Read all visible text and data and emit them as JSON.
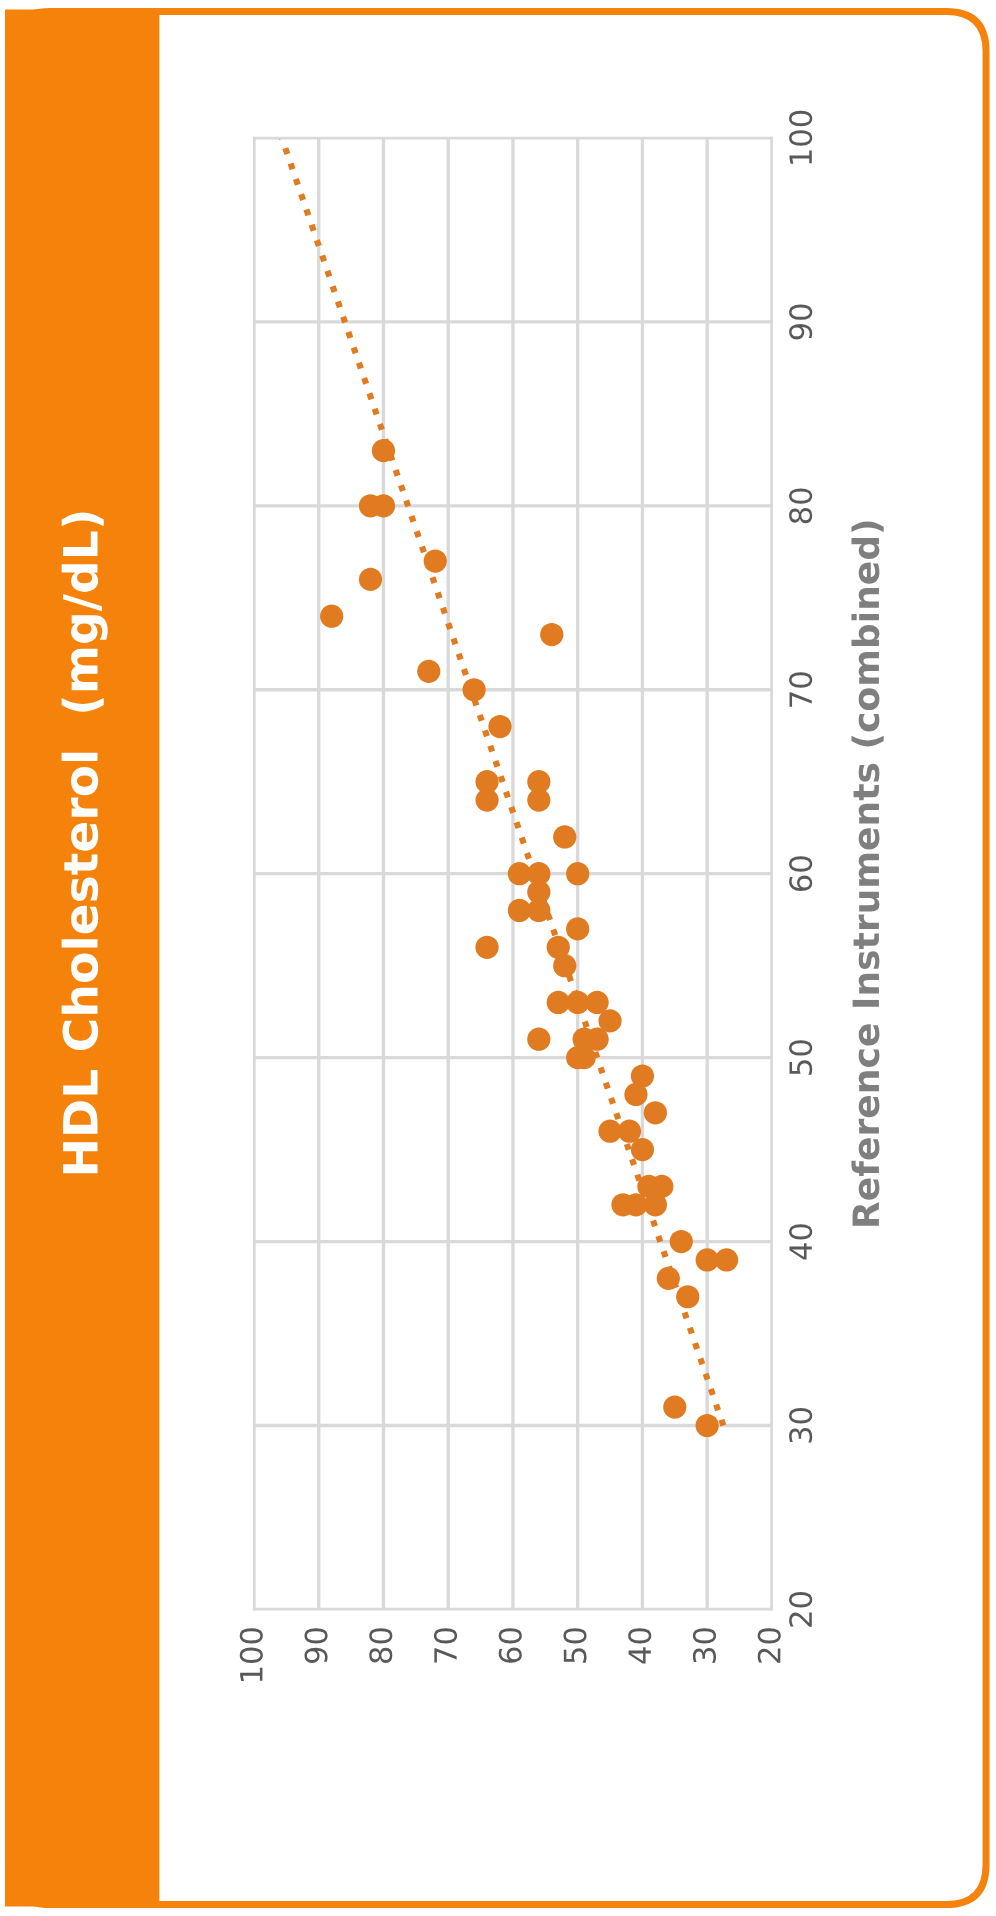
{
  "chart_data": {
    "type": "scatter",
    "title": "HDL Cholesterol  (mg/dL)",
    "ylabel": "Reference Instruments (combined)",
    "xlim": [
      100,
      20
    ],
    "xticks": [
      20,
      30,
      40,
      50,
      60,
      70,
      80,
      90,
      100
    ],
    "ylim": [
      20,
      100
    ],
    "yticks": [
      20,
      30,
      40,
      50,
      60,
      70,
      80,
      90,
      100
    ],
    "grid": true,
    "series": [
      {
        "marker": "circle",
        "color": "#e07b22",
        "x": [
          80,
          82,
          80,
          72,
          82,
          88,
          54,
          73,
          66,
          62,
          64,
          64,
          56,
          56,
          52,
          59,
          56,
          50,
          56,
          59,
          56,
          50,
          64,
          53,
          52,
          53,
          50,
          47,
          45,
          56,
          47,
          49,
          50,
          49,
          40,
          41,
          38,
          45,
          42,
          40,
          39,
          37,
          43,
          41,
          38,
          34,
          30,
          27,
          36,
          33,
          35,
          30
        ],
        "values": [
          83,
          80,
          80,
          77,
          76,
          74,
          73,
          71,
          70,
          68,
          65,
          64,
          65,
          64,
          62,
          60,
          60,
          60,
          59,
          58,
          58,
          57,
          56,
          56,
          55,
          53,
          53,
          53,
          52,
          51,
          51,
          51,
          50,
          50,
          49,
          48,
          47,
          46,
          46,
          45,
          43,
          43,
          42,
          42,
          42,
          40,
          39,
          39,
          38,
          37,
          31,
          30
        ]
      },
      {
        "type": "line",
        "marker": "none",
        "line_style": "dotted",
        "color": "#e07b22",
        "x": [
          27.5,
          95.7
        ],
        "values": [
          30,
          100
        ]
      }
    ]
  }
}
